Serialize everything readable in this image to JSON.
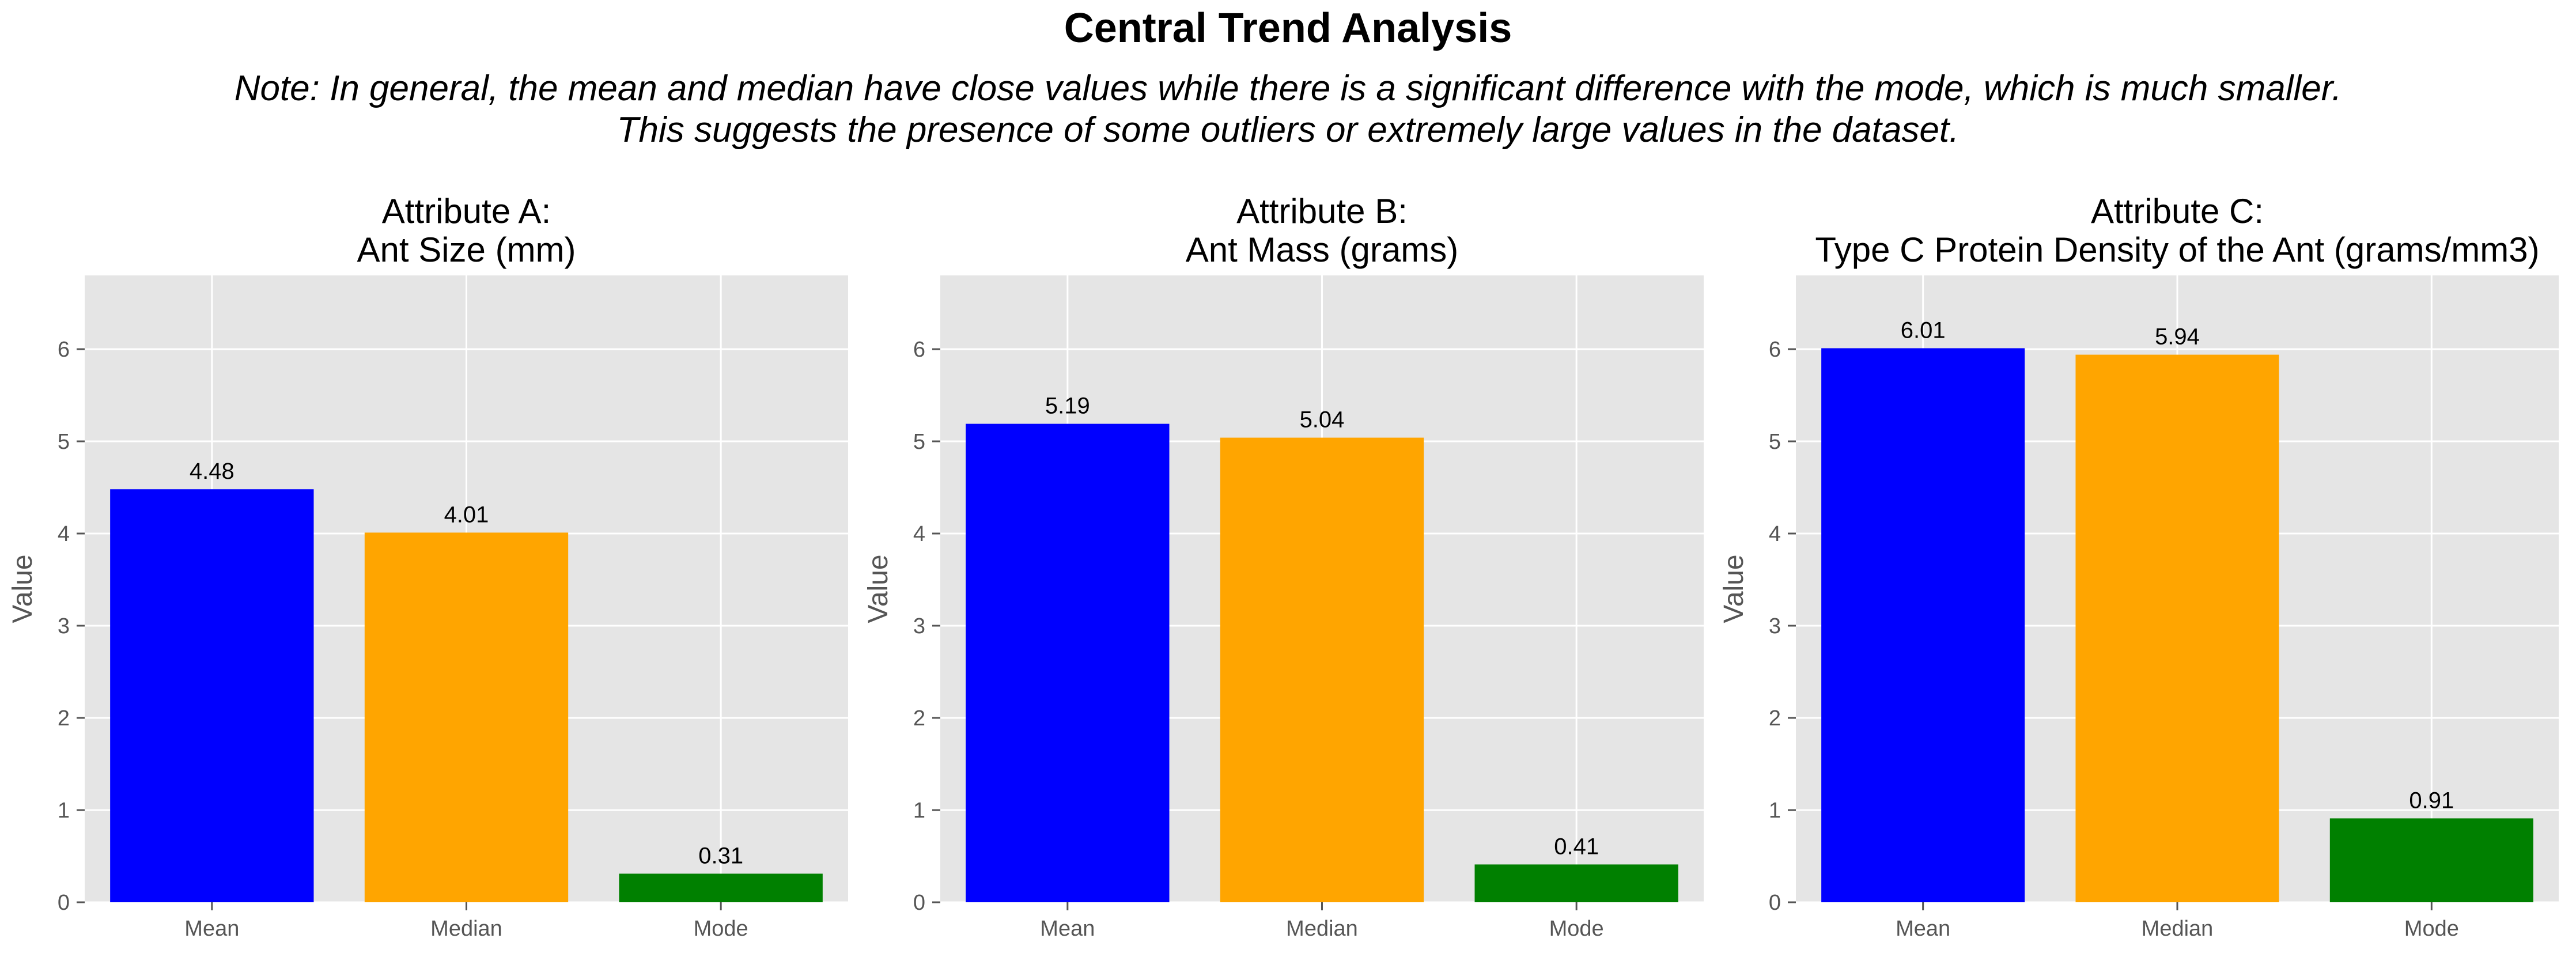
{
  "suptitle": "Central Trend Analysis",
  "note_line1": "Note: In general, the mean and median have close values while there is a significant difference with the mode, which is much smaller.",
  "note_line2": "This suggests the presence of some outliers or extremely large values in the dataset.",
  "chart_data": [
    {
      "type": "bar",
      "title_line1": "Attribute A:",
      "title_line2": "Ant Size (mm)",
      "ylabel": "Value",
      "categories": [
        "Mean",
        "Median",
        "Mode"
      ],
      "values": [
        4.48,
        4.01,
        0.31
      ],
      "value_labels": [
        "4.48",
        "4.01",
        "0.31"
      ],
      "colors": [
        "#0000ff",
        "#ffa500",
        "#008000"
      ],
      "ylim": [
        0,
        6.8
      ],
      "yticks": [
        0,
        1,
        2,
        3,
        4,
        5,
        6
      ],
      "grid": true
    },
    {
      "type": "bar",
      "title_line1": "Attribute B:",
      "title_line2": "Ant Mass (grams)",
      "ylabel": "Value",
      "categories": [
        "Mean",
        "Median",
        "Mode"
      ],
      "values": [
        5.19,
        5.04,
        0.41
      ],
      "value_labels": [
        "5.19",
        "5.04",
        "0.41"
      ],
      "colors": [
        "#0000ff",
        "#ffa500",
        "#008000"
      ],
      "ylim": [
        0,
        6.8
      ],
      "yticks": [
        0,
        1,
        2,
        3,
        4,
        5,
        6
      ],
      "grid": true
    },
    {
      "type": "bar",
      "title_line1": "Attribute C:",
      "title_line2": "Type C Protein Density of the Ant (grams/mm3)",
      "ylabel": "Value",
      "categories": [
        "Mean",
        "Median",
        "Mode"
      ],
      "values": [
        6.01,
        5.94,
        0.91
      ],
      "value_labels": [
        "6.01",
        "5.94",
        "0.91"
      ],
      "colors": [
        "#0000ff",
        "#ffa500",
        "#008000"
      ],
      "ylim": [
        0,
        6.8
      ],
      "yticks": [
        0,
        1,
        2,
        3,
        4,
        5,
        6
      ],
      "grid": true
    }
  ]
}
